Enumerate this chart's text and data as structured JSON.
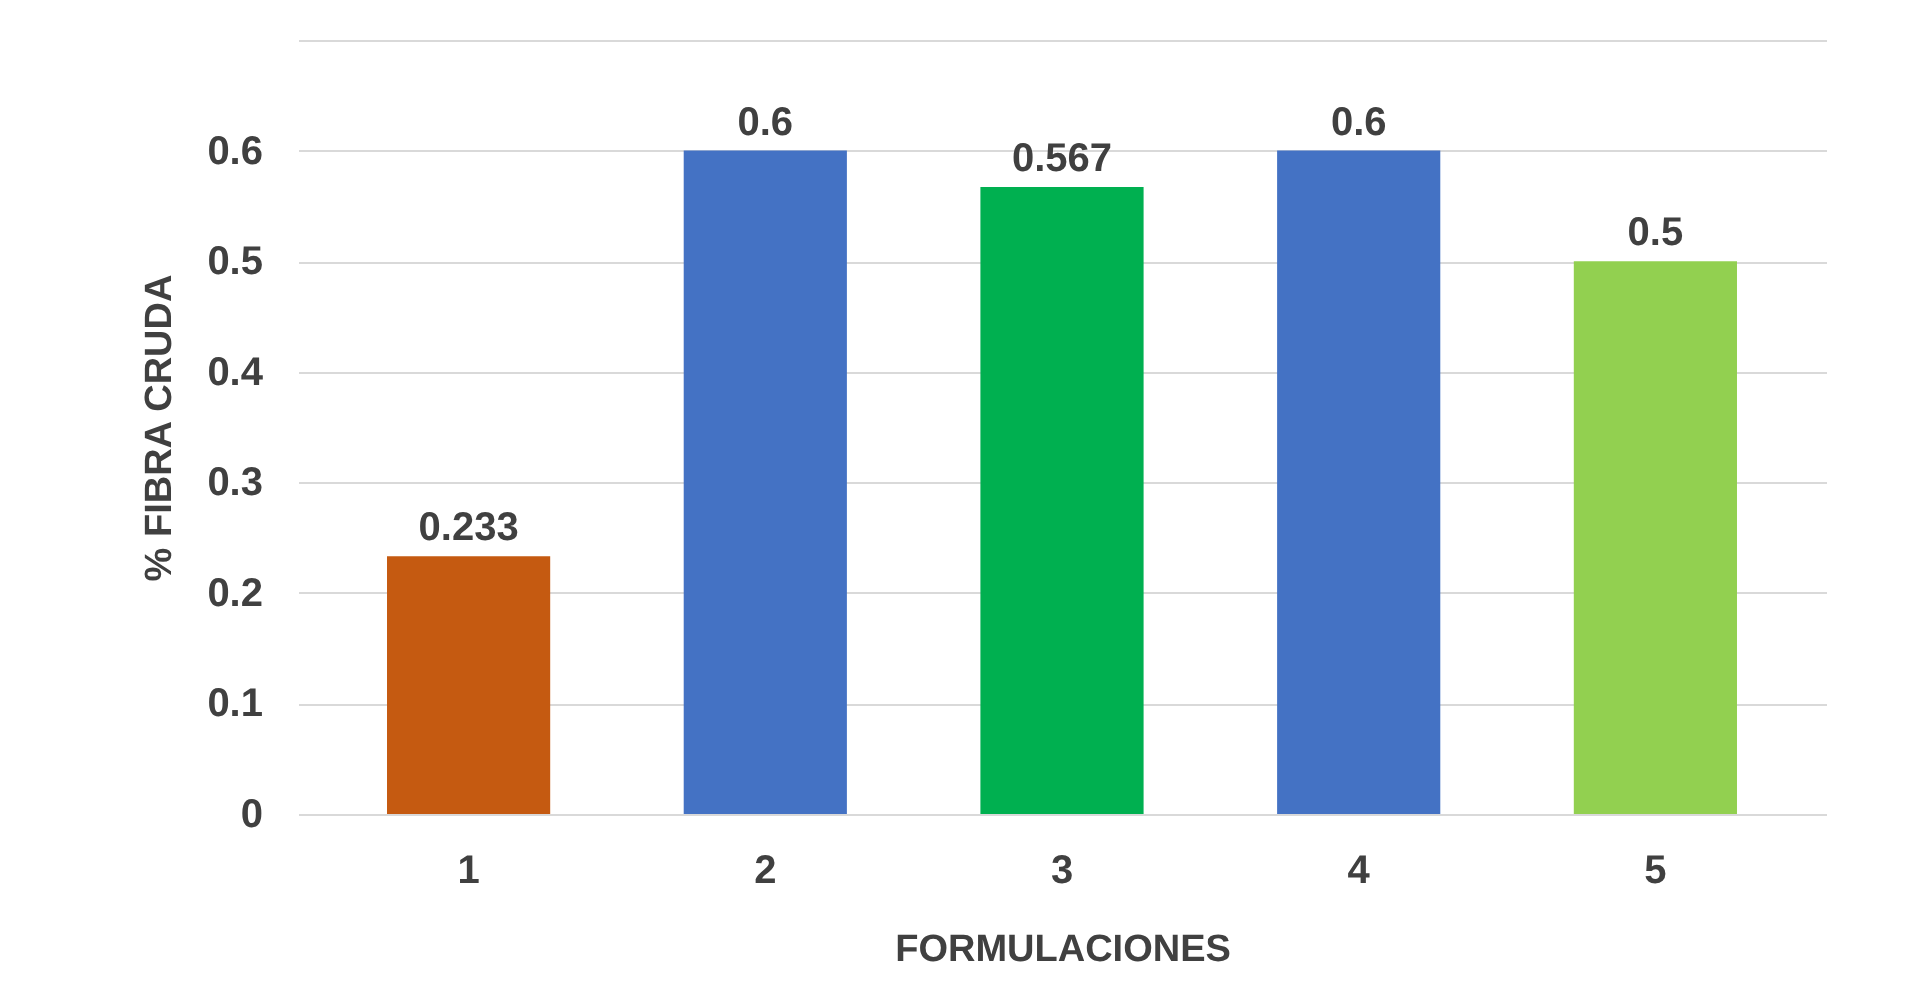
{
  "chart_data": {
    "type": "bar",
    "xlabel": "FORMULACIONES",
    "ylabel": "% FIBRA CRUDA",
    "categories": [
      "1",
      "2",
      "3",
      "4",
      "5"
    ],
    "values": [
      0.233,
      0.6,
      0.567,
      0.6,
      0.5
    ],
    "colors": [
      "#c55a11",
      "#4472c4",
      "#00b050",
      "#4472c4",
      "#92d050"
    ],
    "ylim": [
      0,
      0.7
    ],
    "yticks": [
      0,
      0.1,
      0.2,
      0.3,
      0.4,
      0.5,
      0.6,
      {
        "value": 0.7,
        "label": null
      }
    ],
    "grid": "y",
    "data_labels": true
  }
}
